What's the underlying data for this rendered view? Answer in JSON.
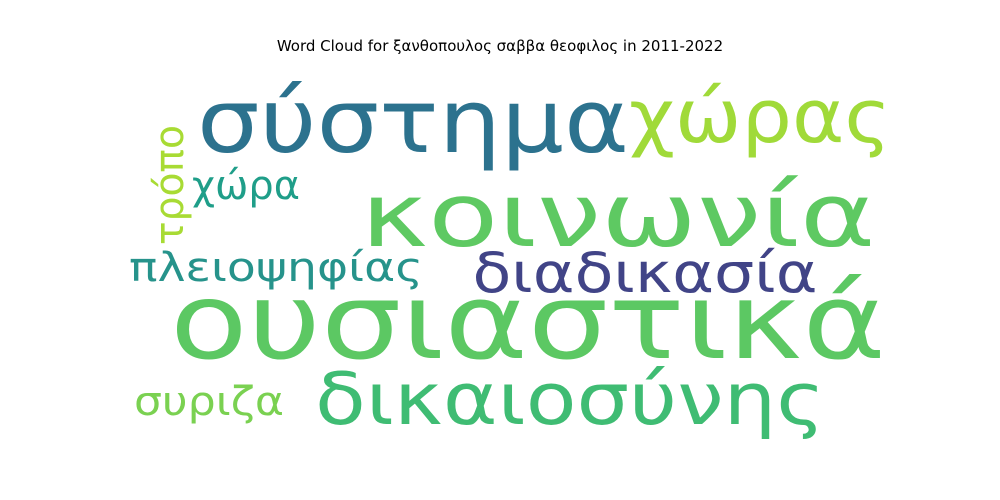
{
  "chart_data": {
    "type": "wordcloud",
    "title": "Word Cloud for ξανθοπουλος σαββα θεοφιλος in 2011-2022",
    "words": [
      {
        "text": "ουσιαστικά",
        "rank": 1,
        "color": "#5cc863",
        "orientation": "horizontal"
      },
      {
        "text": "κοινωνία",
        "rank": 2,
        "color": "#5ec962",
        "orientation": "horizontal"
      },
      {
        "text": "σύστημα",
        "rank": 3,
        "color": "#2c728e",
        "orientation": "horizontal"
      },
      {
        "text": "δικαιοσύνης",
        "rank": 4,
        "color": "#3fbc73",
        "orientation": "horizontal"
      },
      {
        "text": "χώρας",
        "rank": 5,
        "color": "#a0da39",
        "orientation": "horizontal"
      },
      {
        "text": "διαδικασία",
        "rank": 6,
        "color": "#414487",
        "orientation": "horizontal"
      },
      {
        "text": "πλειοψηφίας",
        "rank": 7,
        "color": "#26938b",
        "orientation": "horizontal"
      },
      {
        "text": "συριζα",
        "rank": 8,
        "color": "#7ad151",
        "orientation": "horizontal"
      },
      {
        "text": "χώρα",
        "rank": 9,
        "color": "#1f9e89",
        "orientation": "horizontal"
      },
      {
        "text": "τρόπο",
        "rank": 10,
        "color": "#a8db34",
        "orientation": "vertical"
      }
    ]
  }
}
